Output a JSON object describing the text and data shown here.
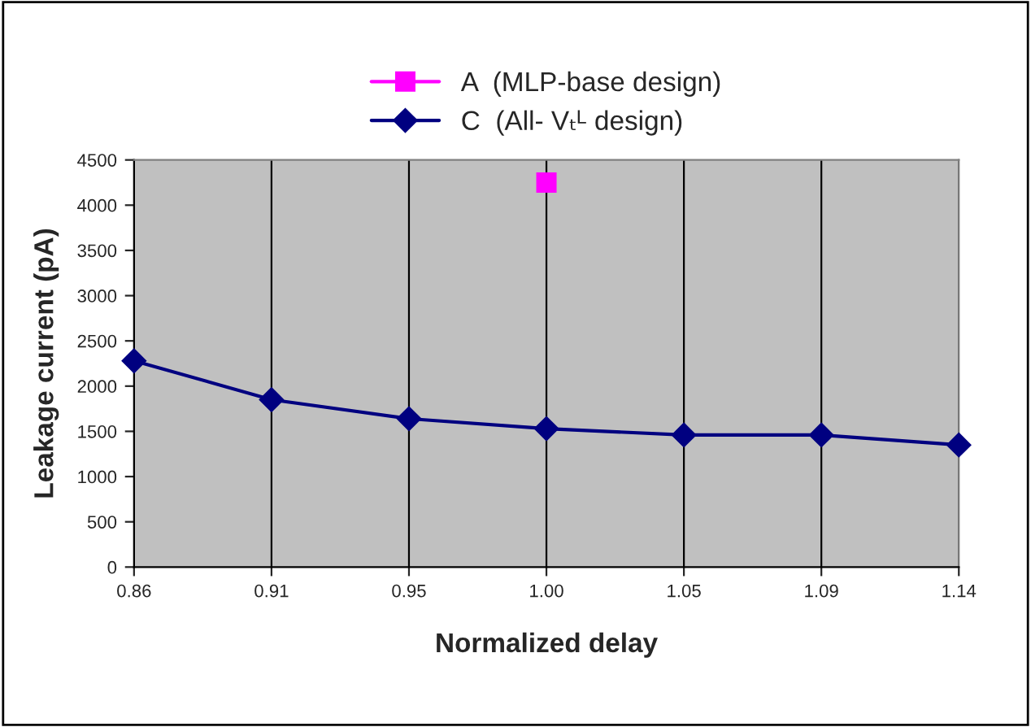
{
  "chart_data": {
    "type": "line",
    "xlabel": "Normalized delay",
    "ylabel": "Leakage current (pA)",
    "categories": [
      "0.86",
      "0.91",
      "0.95",
      "1.00",
      "1.05",
      "1.09",
      "1.14"
    ],
    "series": [
      {
        "name": "A  (MLP-base design)",
        "color": "#ff00ff",
        "marker": "square",
        "values": [
          null,
          null,
          null,
          4250,
          null,
          null,
          null
        ]
      },
      {
        "name": "C  (All- Vₜᴸ design)",
        "color": "#000080",
        "marker": "diamond",
        "values": [
          2280,
          1850,
          1640,
          1530,
          1460,
          1460,
          1350
        ]
      }
    ],
    "ylim": [
      0,
      4500
    ],
    "yticks": [
      0,
      500,
      1000,
      1500,
      2000,
      2500,
      3000,
      3500,
      4000,
      4500
    ],
    "grid": "x",
    "legend": "top",
    "line_style": "solid"
  }
}
